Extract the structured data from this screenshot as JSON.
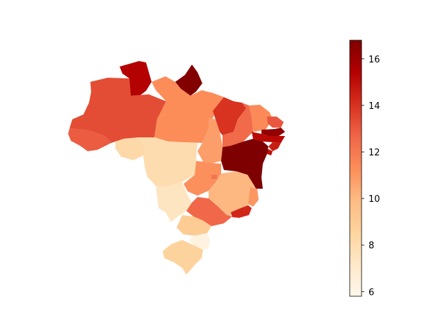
{
  "map": {
    "type": "choropleth",
    "colormap": "OrRd",
    "colorbar": {
      "min": 5.8,
      "max": 16.8,
      "ticks": [
        6,
        8,
        10,
        12,
        14,
        16
      ],
      "tick_labels": [
        "6",
        "8",
        "10",
        "12",
        "14",
        "16"
      ]
    },
    "regions": [
      {
        "id": "AC",
        "value": 12.9
      },
      {
        "id": "AM",
        "value": 13.3
      },
      {
        "id": "RR",
        "value": 15.4
      },
      {
        "id": "AP",
        "value": 16.7
      },
      {
        "id": "PA",
        "value": 11.3
      },
      {
        "id": "RO",
        "value": 8.2
      },
      {
        "id": "MT",
        "value": 8.0
      },
      {
        "id": "TO",
        "value": 10.8
      },
      {
        "id": "MA",
        "value": 14.0
      },
      {
        "id": "PI",
        "value": 12.5
      },
      {
        "id": "CE",
        "value": 11.4
      },
      {
        "id": "RN",
        "value": 13.0
      },
      {
        "id": "PB",
        "value": 16.3
      },
      {
        "id": "PE",
        "value": 15.2
      },
      {
        "id": "AL",
        "value": 14.6
      },
      {
        "id": "SE",
        "value": 15.0
      },
      {
        "id": "BA",
        "value": 16.8
      },
      {
        "id": "GO",
        "value": 11.2
      },
      {
        "id": "DF",
        "value": 12.2
      },
      {
        "id": "MS",
        "value": 7.4
      },
      {
        "id": "MG",
        "value": 10.0
      },
      {
        "id": "ES",
        "value": 11.0
      },
      {
        "id": "RJ",
        "value": 14.3
      },
      {
        "id": "SP",
        "value": 12.6
      },
      {
        "id": "PR",
        "value": 9.0
      },
      {
        "id": "SC",
        "value": 6.3
      },
      {
        "id": "RS",
        "value": 8.6
      }
    ]
  },
  "colors": {
    "OrRd_stops": [
      "#fff7ec",
      "#fee8c8",
      "#fdd49e",
      "#fdbb84",
      "#fc8d59",
      "#ef6548",
      "#d7301f",
      "#b30000",
      "#7f0000"
    ]
  }
}
